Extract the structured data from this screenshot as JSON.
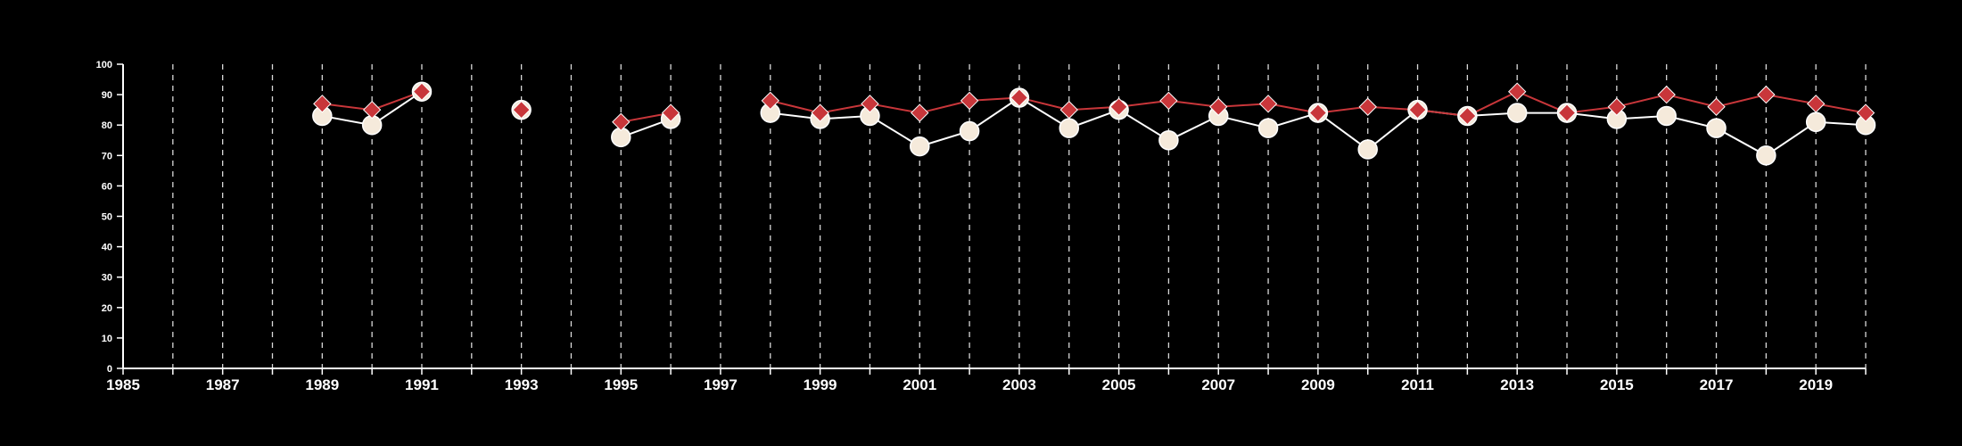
{
  "chart_data": {
    "type": "line",
    "title": "",
    "xlabel": "",
    "ylabel": "",
    "xlim": [
      1985,
      2020
    ],
    "ylim": [
      0,
      100
    ],
    "x_ticks": [
      1985,
      1986,
      1987,
      1988,
      1989,
      1990,
      1991,
      1992,
      1993,
      1994,
      1995,
      1996,
      1997,
      1998,
      1999,
      2000,
      2001,
      2002,
      2003,
      2004,
      2005,
      2006,
      2007,
      2008,
      2009,
      2010,
      2011,
      2012,
      2013,
      2014,
      2015,
      2016,
      2017,
      2018,
      2019,
      2020
    ],
    "x_tick_labels": [
      "1985",
      "",
      "1987",
      "",
      "1989",
      "",
      "1991",
      "",
      "1993",
      "",
      "1995",
      "",
      "1997",
      "",
      "1999",
      "",
      "2001",
      "",
      "2003",
      "",
      "2005",
      "",
      "2007",
      "",
      "2009",
      "",
      "2011",
      "",
      "2013",
      "",
      "2015",
      "",
      "2017",
      "",
      "2019",
      ""
    ],
    "y_ticks": [
      0,
      10,
      20,
      30,
      40,
      50,
      60,
      70,
      80,
      90,
      100
    ],
    "y_tick_labels": [
      "0",
      "10",
      "20",
      "30",
      "40",
      "50",
      "60",
      "70",
      "80",
      "90",
      "100"
    ],
    "grid": "vertical dashed",
    "legend": "none",
    "x": [
      1989,
      1990,
      1991,
      1993,
      1995,
      1996,
      1998,
      1999,
      2000,
      2001,
      2002,
      2003,
      2004,
      2005,
      2006,
      2007,
      2008,
      2009,
      2010,
      2011,
      2012,
      2013,
      2014,
      2015,
      2016,
      2017,
      2018,
      2019,
      2020
    ],
    "series": [
      {
        "marker": "circle",
        "color": "#f5eadb",
        "line_color": "#ffffff",
        "values": [
          83,
          80,
          91,
          85,
          76,
          82,
          84,
          82,
          83,
          73,
          78,
          89,
          79,
          85,
          75,
          83,
          79,
          84,
          72,
          85,
          83,
          84,
          84,
          82,
          83,
          79,
          70,
          81,
          80
        ]
      },
      {
        "marker": "diamond",
        "color": "#c8363a",
        "line_color": "#c8363a",
        "values": [
          87,
          85,
          91,
          85,
          81,
          84,
          88,
          84,
          87,
          84,
          88,
          89,
          85,
          86,
          88,
          86,
          87,
          84,
          86,
          85,
          83,
          91,
          84,
          86,
          90,
          86,
          90,
          87,
          84
        ]
      }
    ]
  }
}
